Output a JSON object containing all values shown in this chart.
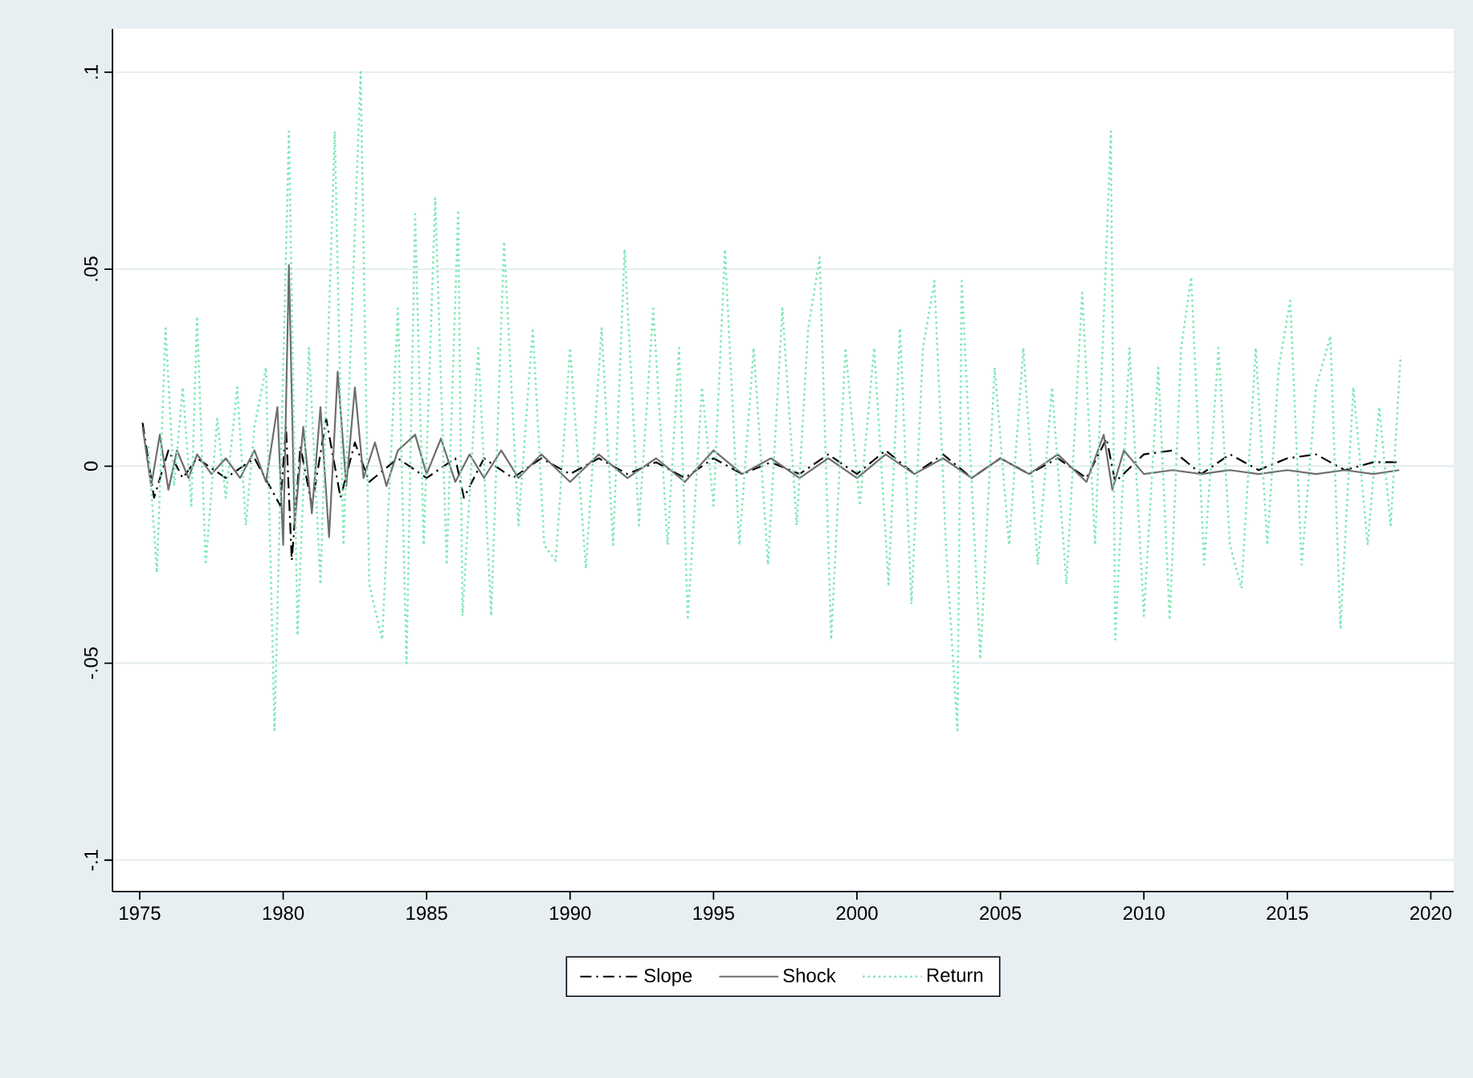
{
  "chart_data": {
    "type": "line",
    "xlim": [
      1974.05,
      2020.8
    ],
    "ylim": [
      -0.108,
      0.111
    ],
    "xticks": [
      1975,
      1980,
      1985,
      1990,
      1995,
      2000,
      2005,
      2010,
      2015,
      2020
    ],
    "yticks": [
      {
        "value": -0.1,
        "label": "-.1"
      },
      {
        "value": -0.05,
        "label": "-.05"
      },
      0,
      {
        "value": 0.05,
        "label": ".05"
      },
      {
        "value": 0.1,
        "label": ".1"
      }
    ],
    "grid": "y",
    "legend": "bottom",
    "series": [
      {
        "name": "Slope",
        "color": "#000000",
        "line_style": "dashdot",
        "x": [
          1975.1,
          1975.5,
          1976,
          1976.5,
          1977,
          1978,
          1979,
          1979.9,
          1980.1,
          1980.3,
          1980.6,
          1981,
          1981.5,
          1982,
          1982.5,
          1983,
          1984,
          1985,
          1986,
          1986.3,
          1987,
          1988,
          1989,
          1990,
          1991,
          1992,
          1993,
          1994,
          1995,
          1996,
          1997,
          1998,
          1999,
          2000,
          2001,
          2002,
          2003,
          2004,
          2005,
          2006,
          2007,
          2008,
          2008.7,
          2009,
          2010,
          2011,
          2012,
          2013,
          2014,
          2015,
          2016,
          2017,
          2018,
          2018.9
        ],
        "values": [
          0.011,
          -0.008,
          0.004,
          -0.003,
          0.002,
          -0.003,
          0.002,
          -0.01,
          0.01,
          -0.024,
          0.005,
          -0.01,
          0.012,
          -0.008,
          0.006,
          -0.004,
          0.002,
          -0.003,
          0.002,
          -0.008,
          0.002,
          -0.003,
          0.002,
          -0.002,
          0.002,
          -0.002,
          0.001,
          -0.003,
          0.002,
          -0.002,
          0.001,
          -0.002,
          0.003,
          -0.002,
          0.004,
          -0.002,
          0.003,
          -0.003,
          0.002,
          -0.002,
          0.002,
          -0.003,
          0.007,
          -0.004,
          0.003,
          0.004,
          -0.002,
          0.003,
          -0.001,
          0.002,
          0.003,
          -0.001,
          0.001,
          0.001
        ]
      },
      {
        "name": "Shock",
        "color": "#6e6e6e",
        "line_style": "solid",
        "x": [
          1975.1,
          1975.4,
          1975.7,
          1976.0,
          1976.3,
          1976.7,
          1977.0,
          1977.5,
          1978.0,
          1978.5,
          1979.0,
          1979.4,
          1979.8,
          1980.0,
          1980.2,
          1980.4,
          1980.7,
          1981.0,
          1981.3,
          1981.6,
          1981.9,
          1982.2,
          1982.5,
          1982.8,
          1983.2,
          1983.6,
          1984.0,
          1984.6,
          1985.0,
          1985.5,
          1986.0,
          1986.5,
          1987.0,
          1987.6,
          1988.2,
          1989,
          1990,
          1991,
          1992,
          1993,
          1994,
          1995,
          1996,
          1997,
          1998,
          1999,
          2000,
          2001,
          2002,
          2003,
          2004,
          2005,
          2006,
          2007,
          2008,
          2008.6,
          2008.9,
          2009.3,
          2010,
          2011,
          2012,
          2013,
          2014,
          2015,
          2016,
          2017,
          2018,
          2018.9
        ],
        "values": [
          0.01,
          -0.005,
          0.008,
          -0.006,
          0.004,
          -0.003,
          0.003,
          -0.002,
          0.002,
          -0.003,
          0.004,
          -0.004,
          0.015,
          -0.02,
          0.051,
          -0.015,
          0.01,
          -0.012,
          0.015,
          -0.018,
          0.024,
          -0.005,
          0.02,
          -0.003,
          0.006,
          -0.005,
          0.004,
          0.008,
          -0.002,
          0.007,
          -0.004,
          0.003,
          -0.003,
          0.004,
          -0.003,
          0.003,
          -0.004,
          0.003,
          -0.003,
          0.002,
          -0.004,
          0.004,
          -0.002,
          0.002,
          -0.003,
          0.002,
          -0.003,
          0.003,
          -0.002,
          0.002,
          -0.003,
          0.002,
          -0.002,
          0.003,
          -0.004,
          0.008,
          -0.006,
          0.004,
          -0.002,
          -0.001,
          -0.002,
          -0.001,
          -0.002,
          -0.001,
          -0.002,
          -0.001,
          -0.002,
          -0.001
        ]
      },
      {
        "name": "Return",
        "color": "#7ee8b4",
        "line_style": "dotted",
        "x": [
          1975.3,
          1975.6,
          1975.9,
          1976.2,
          1976.5,
          1976.8,
          1977.0,
          1977.3,
          1977.7,
          1978.0,
          1978.4,
          1978.7,
          1979.0,
          1979.4,
          1979.7,
          1980.2,
          1980.5,
          1980.9,
          1981.3,
          1981.8,
          1982.1,
          1982.7,
          1983.0,
          1983.45,
          1984.0,
          1984.3,
          1984.6,
          1984.9,
          1985.3,
          1985.7,
          1986.1,
          1986.25,
          1986.8,
          1987.25,
          1987.7,
          1988.2,
          1988.7,
          1989.1,
          1989.5,
          1990.0,
          1990.55,
          1991.1,
          1991.5,
          1991.9,
          1992.4,
          1992.9,
          1993.4,
          1993.8,
          1994.1,
          1994.6,
          1995.0,
          1995.4,
          1995.9,
          1996.4,
          1996.9,
          1997.4,
          1997.9,
          1998.3,
          1998.7,
          1999.1,
          1999.6,
          2000.1,
          2000.6,
          2001.1,
          2001.5,
          2001.9,
          2002.3,
          2002.7,
          2003.1,
          2003.5,
          2003.65,
          2004.3,
          2004.8,
          2005.3,
          2005.8,
          2006.3,
          2006.8,
          2007.3,
          2007.85,
          2008.3,
          2008.85,
          2009.0,
          2009.5,
          2010.0,
          2010.5,
          2010.9,
          2011.3,
          2011.65,
          2012.1,
          2012.6,
          2013.0,
          2013.4,
          2013.9,
          2014.3,
          2014.7,
          2015.1,
          2015.5,
          2016.0,
          2016.5,
          2016.85,
          2017.3,
          2017.8,
          2018.2,
          2018.6,
          2018.95
        ],
        "values": [
          0.005,
          -0.027,
          0.035,
          -0.005,
          0.02,
          -0.01,
          0.038,
          -0.025,
          0.012,
          -0.008,
          0.02,
          -0.015,
          0.01,
          0.025,
          -0.067,
          0.085,
          -0.043,
          0.03,
          -0.03,
          0.085,
          -0.02,
          0.1,
          -0.03,
          -0.044,
          0.04,
          -0.05,
          0.064,
          -0.02,
          0.068,
          -0.025,
          0.065,
          -0.038,
          0.03,
          -0.038,
          0.057,
          -0.015,
          0.035,
          -0.02,
          -0.024,
          0.03,
          -0.026,
          0.035,
          -0.02,
          0.055,
          -0.015,
          0.04,
          -0.02,
          0.03,
          -0.039,
          0.02,
          -0.01,
          0.055,
          -0.02,
          0.03,
          -0.025,
          0.04,
          -0.015,
          0.035,
          0.053,
          -0.044,
          0.03,
          -0.01,
          0.03,
          -0.03,
          0.035,
          -0.035,
          0.03,
          0.047,
          -0.02,
          -0.067,
          0.047,
          -0.049,
          0.025,
          -0.02,
          0.03,
          -0.025,
          0.02,
          -0.03,
          0.044,
          -0.02,
          0.085,
          -0.044,
          0.03,
          -0.038,
          0.025,
          -0.039,
          0.03,
          0.048,
          -0.025,
          0.03,
          -0.02,
          -0.031,
          0.03,
          -0.02,
          0.025,
          0.042,
          -0.025,
          0.02,
          0.033,
          -0.041,
          0.02,
          -0.02,
          0.015,
          -0.015,
          0.028
        ]
      }
    ]
  }
}
